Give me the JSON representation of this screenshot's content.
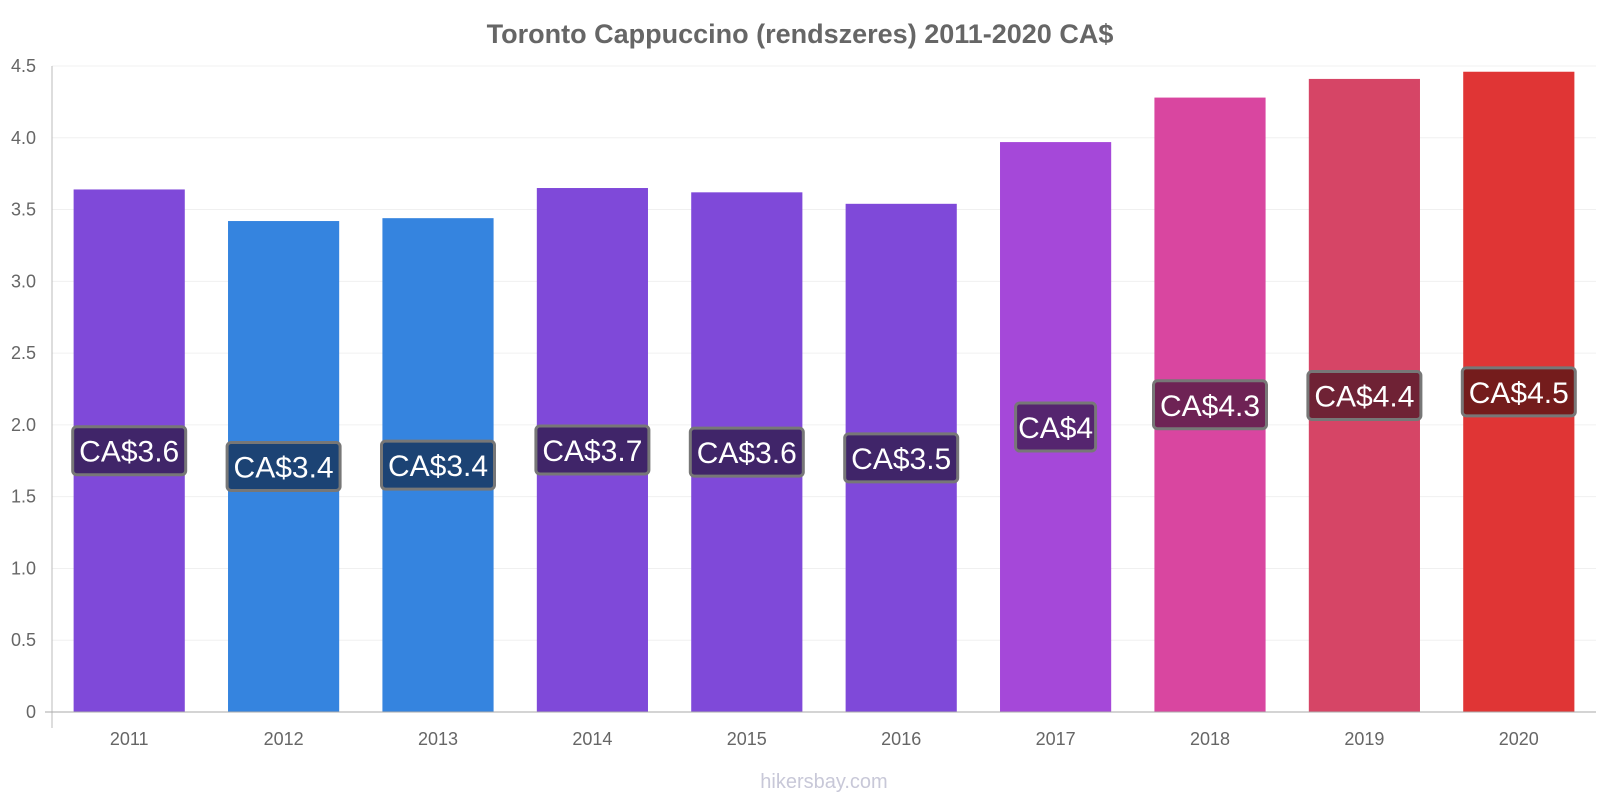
{
  "chart_data": {
    "type": "bar",
    "title": "Toronto Cappuccino (rendszeres) 2011-2020 CA$",
    "xlabel": "",
    "ylabel": "",
    "ylim": [
      0,
      4.5
    ],
    "yticks": [
      "0",
      "0.5",
      "1.0",
      "1.5",
      "2.0",
      "2.5",
      "3.0",
      "3.5",
      "4.0",
      "4.5"
    ],
    "grid": true,
    "categories": [
      "2011",
      "2012",
      "2013",
      "2014",
      "2015",
      "2016",
      "2017",
      "2018",
      "2019",
      "2020"
    ],
    "values": [
      3.64,
      3.42,
      3.44,
      3.65,
      3.62,
      3.54,
      3.97,
      4.28,
      4.41,
      4.46
    ],
    "data_labels": [
      "CA$3.6",
      "CA$3.4",
      "CA$3.4",
      "CA$3.7",
      "CA$3.6",
      "CA$3.5",
      "CA$4",
      "CA$4.3",
      "CA$4.4",
      "CA$4.5"
    ],
    "bar_colors": [
      "#7f49d9",
      "#3584df",
      "#3584df",
      "#7f49d9",
      "#7f49d9",
      "#7f49d9",
      "#a548d9",
      "#d946a0",
      "#d64566",
      "#e03535"
    ],
    "label_bg_colors": [
      "#3b235f",
      "#1a3e6a",
      "#1a3e6a",
      "#3b235f",
      "#3b235f",
      "#3b235f",
      "#4e2366",
      "#65214e",
      "#661f31",
      "#6a1a1a"
    ]
  },
  "watermark": "hikersbay.com"
}
